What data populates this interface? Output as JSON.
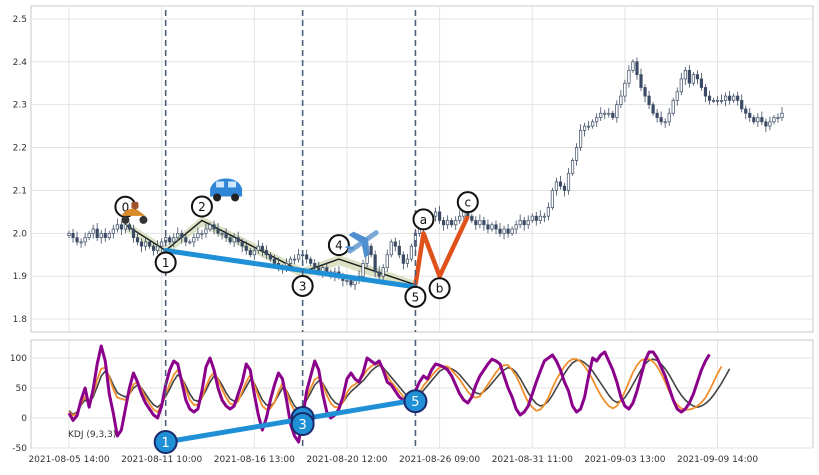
{
  "chart_data": [
    {
      "type": "candlestick",
      "ylim": [
        1.77,
        2.53
      ],
      "yticks": [
        1.8,
        1.9,
        2.0,
        2.1,
        2.2,
        2.3,
        2.4,
        2.5
      ],
      "xticks": [
        {
          "i": 0,
          "label": "2021-08-05 14:00"
        },
        {
          "i": 23,
          "label": "2021-08-11 10:00"
        },
        {
          "i": 46,
          "label": "2021-08-16 13:00"
        },
        {
          "i": 69,
          "label": "2021-08-20 12:00"
        },
        {
          "i": 92,
          "label": "2021-08-26 09:00"
        },
        {
          "i": 115,
          "label": "2021-08-31 11:00"
        },
        {
          "i": 138,
          "label": "2021-09-03 13:00"
        },
        {
          "i": 161,
          "label": "2021-09-09 14:00"
        }
      ],
      "closes": [
        2.0,
        1.99,
        1.98,
        1.98,
        1.99,
        2.0,
        2.01,
        1.99,
        2.0,
        1.99,
        2.0,
        2.01,
        2.02,
        2.01,
        2.02,
        2.01,
        1.99,
        1.98,
        1.97,
        1.98,
        1.97,
        1.96,
        1.97,
        1.98,
        1.99,
        1.98,
        1.99,
        2.0,
        1.99,
        1.98,
        1.98,
        1.99,
        2.0,
        2.0,
        2.01,
        2.02,
        2.01,
        2.0,
        2.0,
        1.99,
        1.98,
        1.99,
        1.98,
        1.97,
        1.96,
        1.95,
        1.96,
        1.97,
        1.96,
        1.95,
        1.94,
        1.93,
        1.92,
        1.92,
        1.93,
        1.94,
        1.94,
        1.95,
        1.95,
        1.94,
        1.93,
        1.92,
        1.91,
        1.92,
        1.91,
        1.9,
        1.91,
        1.9,
        1.89,
        1.89,
        1.88,
        1.89,
        1.9,
        1.93,
        1.97,
        1.95,
        1.91,
        1.9,
        1.92,
        1.95,
        1.98,
        1.97,
        1.95,
        1.93,
        1.94,
        1.97,
        2.0,
        2.01,
        2.02,
        2.03,
        2.04,
        2.05,
        2.03,
        2.02,
        2.03,
        2.02,
        2.03,
        2.04,
        2.05,
        2.04,
        2.03,
        2.02,
        2.03,
        2.02,
        2.01,
        2.02,
        2.01,
        2.0,
        2.01,
        2.0,
        2.01,
        2.02,
        2.03,
        2.02,
        2.03,
        2.04,
        2.03,
        2.04,
        2.04,
        2.06,
        2.1,
        2.12,
        2.11,
        2.1,
        2.14,
        2.17,
        2.2,
        2.24,
        2.25,
        2.25,
        2.26,
        2.27,
        2.28,
        2.28,
        2.28,
        2.27,
        2.3,
        2.32,
        2.35,
        2.38,
        2.4,
        2.37,
        2.34,
        2.32,
        2.3,
        2.28,
        2.27,
        2.26,
        2.26,
        2.28,
        2.31,
        2.33,
        2.36,
        2.38,
        2.35,
        2.37,
        2.36,
        2.34,
        2.32,
        2.31,
        2.31,
        2.31,
        2.31,
        2.32,
        2.31,
        2.32,
        2.31,
        2.29,
        2.28,
        2.27,
        2.26,
        2.27,
        2.26,
        2.25,
        2.26,
        2.27,
        2.27,
        2.28
      ],
      "zigzag_points": [
        {
          "i": 14,
          "y": 2.02,
          "label": "0"
        },
        {
          "i": 24,
          "y": 1.96,
          "label": "1"
        },
        {
          "i": 33,
          "y": 2.03,
          "label": "2"
        },
        {
          "i": 58,
          "y": 1.91,
          "label": "3"
        },
        {
          "i": 67,
          "y": 1.94,
          "label": "4"
        },
        {
          "i": 86,
          "y": 1.88,
          "label": "5"
        },
        {
          "i": 88,
          "y": 2.0,
          "label": "a"
        },
        {
          "i": 92,
          "y": 1.9,
          "label": "b"
        },
        {
          "i": 99,
          "y": 2.04,
          "label": "c"
        }
      ],
      "trend_line": {
        "i": [
          24,
          86
        ],
        "y": [
          1.96,
          1.875
        ]
      },
      "impulse_line": {
        "i": [
          86,
          88,
          92,
          99
        ],
        "y": [
          1.88,
          2.0,
          1.9,
          2.04
        ]
      },
      "vlines": [
        24,
        58,
        86
      ],
      "icons": [
        "scooter-icon",
        "car-icon",
        "airplane-icon"
      ],
      "colors": {
        "up": "#ffffff",
        "down": "#3a4a63",
        "trend": "#1f8fd6",
        "impulse": "#e0521b",
        "wave_fill": "#d7dfbf",
        "vline": "#4d6078"
      }
    },
    {
      "type": "line",
      "label": "KDJ (9,3,3)",
      "ylim": [
        -50,
        130
      ],
      "yticks": [
        -50,
        0,
        50,
        100
      ],
      "series": [
        {
          "values": [
            12,
            6,
            10,
            22,
            30,
            26,
            35,
            52,
            70,
            78,
            70,
            55,
            42,
            38,
            35,
            40,
            50,
            55,
            50,
            40,
            30,
            22,
            18,
            24,
            36,
            48,
            62,
            72,
            66,
            54,
            40,
            30,
            28,
            34,
            46,
            60,
            70,
            66,
            55,
            42,
            32,
            28,
            30,
            40,
            52,
            64,
            58,
            44,
            30,
            22,
            20,
            26,
            38,
            50,
            46,
            32,
            20,
            14,
            18,
            30,
            42,
            55,
            62,
            58,
            46,
            34,
            26,
            22,
            26,
            36,
            44,
            50,
            56,
            62,
            70,
            78,
            84,
            88,
            84,
            76,
            68,
            60,
            52,
            44,
            36,
            30,
            32,
            38,
            46,
            54,
            62,
            70,
            78,
            82,
            84,
            82,
            78,
            72,
            64,
            56,
            48,
            42,
            40,
            44,
            50,
            58,
            66,
            74,
            80,
            84,
            82,
            76,
            66,
            54,
            42,
            32,
            24,
            20,
            22,
            28,
            38,
            50,
            62,
            74,
            84,
            92,
            96,
            96,
            92,
            86,
            78,
            68,
            58,
            48,
            38,
            30,
            26,
            28,
            34,
            44,
            56,
            68,
            80,
            90,
            96,
            98,
            96,
            90,
            82,
            72,
            60,
            48,
            38,
            30,
            24,
            20,
            18,
            20,
            24,
            30,
            38,
            48,
            58,
            70,
            82
          ]
        },
        {
          "values": [
            10,
            4,
            8,
            24,
            36,
            24,
            40,
            64,
            82,
            84,
            68,
            48,
            34,
            32,
            30,
            40,
            56,
            60,
            48,
            34,
            24,
            14,
            10,
            22,
            40,
            56,
            72,
            80,
            66,
            48,
            30,
            22,
            22,
            34,
            52,
            68,
            76,
            64,
            48,
            34,
            24,
            22,
            28,
            44,
            60,
            72,
            56,
            36,
            20,
            14,
            16,
            26,
            44,
            58,
            44,
            24,
            12,
            8,
            16,
            34,
            50,
            64,
            68,
            56,
            38,
            24,
            18,
            18,
            26,
            42,
            52,
            56,
            62,
            70,
            80,
            86,
            90,
            90,
            82,
            70,
            60,
            52,
            44,
            36,
            28,
            24,
            30,
            42,
            54,
            62,
            70,
            78,
            84,
            86,
            86,
            80,
            72,
            64,
            54,
            44,
            36,
            34,
            36,
            46,
            56,
            66,
            76,
            84,
            88,
            88,
            80,
            70,
            56,
            40,
            26,
            18,
            12,
            14,
            22,
            34,
            50,
            64,
            76,
            86,
            94,
            98,
            98,
            94,
            86,
            76,
            64,
            50,
            38,
            28,
            20,
            16,
            20,
            30,
            44,
            60,
            76,
            88,
            96,
            98,
            98,
            94,
            86,
            74,
            60,
            44,
            30,
            22,
            16,
            14,
            14,
            16,
            20,
            26,
            34,
            46,
            60,
            74,
            86
          ]
        },
        {
          "values": [
            8,
            -4,
            4,
            30,
            50,
            18,
            48,
            90,
            120,
            95,
            40,
            8,
            -30,
            -20,
            15,
            50,
            75,
            60,
            40,
            25,
            15,
            5,
            0,
            20,
            55,
            80,
            95,
            90,
            60,
            30,
            15,
            10,
            15,
            45,
            85,
            100,
            80,
            50,
            30,
            20,
            15,
            20,
            40,
            60,
            90,
            80,
            40,
            5,
            -20,
            0,
            30,
            55,
            75,
            65,
            30,
            -10,
            -30,
            -40,
            0,
            45,
            70,
            95,
            80,
            40,
            10,
            0,
            5,
            15,
            35,
            65,
            75,
            65,
            60,
            75,
            100,
            95,
            90,
            95,
            80,
            60,
            55,
            45,
            35,
            30,
            20,
            25,
            45,
            60,
            70,
            65,
            80,
            90,
            88,
            85,
            80,
            70,
            55,
            40,
            30,
            25,
            35,
            55,
            70,
            80,
            90,
            98,
            95,
            90,
            70,
            50,
            35,
            15,
            5,
            10,
            20,
            40,
            60,
            78,
            95,
            100,
            105,
            95,
            80,
            60,
            45,
            20,
            10,
            15,
            35,
            70,
            100,
            95,
            105,
            110,
            95,
            80,
            60,
            35,
            20,
            15,
            25,
            45,
            70,
            95,
            110,
            110,
            100,
            85,
            70,
            50,
            30,
            15,
            10,
            15,
            25,
            40,
            60,
            80,
            95,
            106
          ]
        }
      ],
      "colors": {
        "k_line": "#444444",
        "d_line": "#f28e2b",
        "j_line": "#8b008b",
        "trend": "#1f8fd6"
      },
      "markers": [
        {
          "i": 24,
          "y": -40,
          "label": "1"
        },
        {
          "i": 58,
          "y": 0,
          "label": "3"
        },
        {
          "i": 58,
          "y": -10,
          "label": "3"
        },
        {
          "i": 86,
          "y": 28,
          "label": "5"
        }
      ],
      "trend_line": {
        "i": [
          24,
          86
        ],
        "y": [
          -40,
          30
        ]
      }
    }
  ]
}
